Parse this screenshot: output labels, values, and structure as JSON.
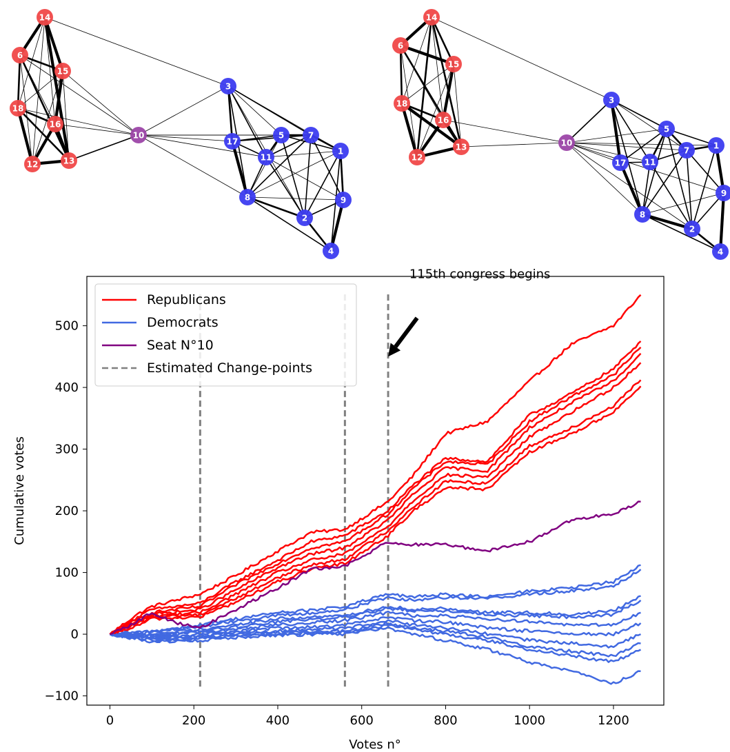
{
  "colors": {
    "republican": "#ff0000",
    "democrat": "#4169e1",
    "seat10": "#800080",
    "changepoint": "#808080",
    "node_red": "#f04848",
    "node_blue": "#3c3cf0",
    "node_purple": "#9c46a8"
  },
  "networks": [
    {
      "name": "left-network",
      "nodes": [
        {
          "id": "14",
          "party": "R"
        },
        {
          "id": "6",
          "party": "R"
        },
        {
          "id": "15",
          "party": "R"
        },
        {
          "id": "18",
          "party": "R"
        },
        {
          "id": "16",
          "party": "R"
        },
        {
          "id": "12",
          "party": "R"
        },
        {
          "id": "13",
          "party": "R"
        },
        {
          "id": "10",
          "party": "X"
        },
        {
          "id": "3",
          "party": "D"
        },
        {
          "id": "17",
          "party": "D"
        },
        {
          "id": "5",
          "party": "D"
        },
        {
          "id": "7",
          "party": "D"
        },
        {
          "id": "11",
          "party": "D"
        },
        {
          "id": "1",
          "party": "D"
        },
        {
          "id": "8",
          "party": "D"
        },
        {
          "id": "9",
          "party": "D"
        },
        {
          "id": "2",
          "party": "D"
        },
        {
          "id": "4",
          "party": "D"
        }
      ]
    },
    {
      "name": "right-network",
      "nodes": [
        {
          "id": "14",
          "party": "R"
        },
        {
          "id": "6",
          "party": "R"
        },
        {
          "id": "15",
          "party": "R"
        },
        {
          "id": "18",
          "party": "R"
        },
        {
          "id": "16",
          "party": "R"
        },
        {
          "id": "12",
          "party": "R"
        },
        {
          "id": "13",
          "party": "R"
        },
        {
          "id": "10",
          "party": "X"
        },
        {
          "id": "3",
          "party": "D"
        },
        {
          "id": "5",
          "party": "D"
        },
        {
          "id": "17",
          "party": "D"
        },
        {
          "id": "11",
          "party": "D"
        },
        {
          "id": "7",
          "party": "D"
        },
        {
          "id": "1",
          "party": "D"
        },
        {
          "id": "9",
          "party": "D"
        },
        {
          "id": "8",
          "party": "D"
        },
        {
          "id": "2",
          "party": "D"
        },
        {
          "id": "4",
          "party": "D"
        }
      ]
    }
  ],
  "chart_data": {
    "type": "line",
    "xlabel": "Votes n°",
    "ylabel": "Cumulative votes",
    "xlim": [
      -55,
      1320
    ],
    "ylim": [
      -115,
      580
    ],
    "xticks": [
      0,
      200,
      400,
      600,
      800,
      1000,
      1200
    ],
    "yticks": [
      -100,
      0,
      100,
      200,
      300,
      400,
      500
    ],
    "grid": false,
    "legend_position": "top-left",
    "legend": [
      {
        "label": "Republicans",
        "style": "solid",
        "color_key": "republican"
      },
      {
        "label": "Democrats",
        "style": "solid",
        "color_key": "democrat"
      },
      {
        "label": "Seat N°10",
        "style": "solid",
        "color_key": "seat10"
      },
      {
        "label": "Estimated Change-points",
        "style": "dashed",
        "color_key": "changepoint"
      }
    ],
    "changepoints": [
      215,
      560,
      663
    ],
    "changepoint_yrange": [
      -85,
      553
    ],
    "annotation": {
      "text": "115th congress begins",
      "x": 663,
      "y": 450,
      "text_x": 730,
      "text_y": 530
    },
    "series": [
      {
        "group": "republican",
        "x": [
          0,
          60,
          100,
          215,
          300,
          400,
          480,
          560,
          663,
          720,
          800,
          900,
          1000,
          1100,
          1200,
          1265
        ],
        "y": [
          0,
          30,
          45,
          65,
          95,
          135,
          165,
          170,
          215,
          255,
          325,
          345,
          410,
          470,
          500,
          550
        ]
      },
      {
        "group": "republican",
        "x": [
          0,
          60,
          100,
          215,
          300,
          400,
          480,
          560,
          663,
          720,
          800,
          900,
          1000,
          1100,
          1200,
          1265
        ],
        "y": [
          0,
          25,
          40,
          50,
          85,
          120,
          150,
          160,
          200,
          240,
          285,
          280,
          355,
          390,
          430,
          475
        ]
      },
      {
        "group": "republican",
        "x": [
          0,
          60,
          100,
          215,
          300,
          400,
          480,
          560,
          663,
          720,
          800,
          900,
          1000,
          1100,
          1200,
          1265
        ],
        "y": [
          0,
          22,
          35,
          45,
          80,
          115,
          140,
          150,
          195,
          235,
          280,
          275,
          345,
          385,
          420,
          465
        ]
      },
      {
        "group": "republican",
        "x": [
          0,
          60,
          100,
          215,
          300,
          400,
          480,
          560,
          663,
          720,
          800,
          900,
          1000,
          1100,
          1200,
          1265
        ],
        "y": [
          0,
          20,
          32,
          40,
          72,
          108,
          130,
          140,
          185,
          225,
          270,
          265,
          335,
          375,
          410,
          455
        ]
      },
      {
        "group": "republican",
        "x": [
          0,
          60,
          100,
          215,
          300,
          400,
          480,
          560,
          663,
          720,
          800,
          900,
          1000,
          1100,
          1200,
          1265
        ],
        "y": [
          0,
          18,
          30,
          35,
          65,
          100,
          120,
          130,
          175,
          215,
          258,
          255,
          320,
          360,
          400,
          440
        ]
      },
      {
        "group": "republican",
        "x": [
          0,
          60,
          100,
          215,
          300,
          400,
          480,
          560,
          663,
          720,
          800,
          900,
          1000,
          1100,
          1200,
          1265
        ],
        "y": [
          0,
          15,
          28,
          32,
          58,
          92,
          112,
          122,
          168,
          205,
          248,
          245,
          305,
          335,
          370,
          412
        ]
      },
      {
        "group": "republican",
        "x": [
          0,
          60,
          100,
          215,
          300,
          400,
          480,
          560,
          663,
          720,
          800,
          900,
          1000,
          1100,
          1200,
          1265
        ],
        "y": [
          0,
          12,
          25,
          28,
          52,
          85,
          105,
          115,
          160,
          198,
          238,
          235,
          295,
          325,
          360,
          402
        ]
      },
      {
        "group": "democrat",
        "x": [
          0,
          100,
          215,
          300,
          400,
          500,
          560,
          663,
          720,
          800,
          900,
          1000,
          1100,
          1200,
          1265
        ],
        "y": [
          0,
          5,
          15,
          25,
          35,
          40,
          45,
          65,
          60,
          65,
          60,
          70,
          75,
          85,
          112
        ]
      },
      {
        "group": "democrat",
        "x": [
          0,
          100,
          215,
          300,
          400,
          500,
          560,
          663,
          720,
          800,
          900,
          1000,
          1100,
          1200,
          1265
        ],
        "y": [
          0,
          3,
          12,
          22,
          30,
          35,
          40,
          60,
          55,
          60,
          58,
          65,
          70,
          78,
          105
        ]
      },
      {
        "group": "democrat",
        "x": [
          0,
          100,
          215,
          300,
          400,
          500,
          560,
          663,
          720,
          800,
          900,
          1000,
          1100,
          1200,
          1265
        ],
        "y": [
          0,
          0,
          8,
          15,
          25,
          28,
          30,
          45,
          40,
          42,
          35,
          35,
          32,
          38,
          62
        ]
      },
      {
        "group": "democrat",
        "x": [
          0,
          100,
          215,
          300,
          400,
          500,
          560,
          663,
          720,
          800,
          900,
          1000,
          1100,
          1200,
          1265
        ],
        "y": [
          0,
          -2,
          5,
          12,
          20,
          25,
          28,
          42,
          38,
          38,
          32,
          30,
          28,
          32,
          55
        ]
      },
      {
        "group": "democrat",
        "x": [
          0,
          100,
          215,
          300,
          400,
          500,
          560,
          663,
          720,
          800,
          900,
          1000,
          1100,
          1200,
          1265
        ],
        "y": [
          0,
          -3,
          3,
          8,
          15,
          20,
          22,
          35,
          30,
          30,
          25,
          20,
          15,
          15,
          35
        ]
      },
      {
        "group": "democrat",
        "x": [
          0,
          100,
          215,
          300,
          400,
          500,
          560,
          663,
          720,
          800,
          900,
          1000,
          1100,
          1200,
          1265
        ],
        "y": [
          0,
          -5,
          0,
          5,
          10,
          12,
          15,
          28,
          22,
          20,
          10,
          5,
          0,
          0,
          18
        ]
      },
      {
        "group": "democrat",
        "x": [
          0,
          100,
          215,
          300,
          400,
          500,
          560,
          663,
          720,
          800,
          900,
          1000,
          1100,
          1200,
          1265
        ],
        "y": [
          0,
          -6,
          -3,
          2,
          5,
          8,
          10,
          22,
          15,
          10,
          0,
          -10,
          -15,
          -20,
          0
        ]
      },
      {
        "group": "democrat",
        "x": [
          0,
          100,
          215,
          300,
          400,
          500,
          560,
          663,
          720,
          800,
          900,
          1000,
          1100,
          1200,
          1265
        ],
        "y": [
          0,
          -8,
          -5,
          0,
          2,
          5,
          5,
          18,
          10,
          5,
          -5,
          -20,
          -28,
          -35,
          -15
        ]
      },
      {
        "group": "democrat",
        "x": [
          0,
          100,
          215,
          300,
          400,
          500,
          560,
          663,
          720,
          800,
          900,
          1000,
          1100,
          1200,
          1265
        ],
        "y": [
          0,
          -10,
          -8,
          -2,
          0,
          2,
          3,
          15,
          8,
          0,
          -10,
          -25,
          -35,
          -45,
          -25
        ]
      },
      {
        "group": "democrat",
        "x": [
          0,
          100,
          215,
          300,
          400,
          500,
          560,
          663,
          720,
          800,
          900,
          1000,
          1100,
          1200,
          1265
        ],
        "y": [
          0,
          -12,
          -10,
          -5,
          -2,
          0,
          0,
          10,
          0,
          -10,
          -25,
          -45,
          -60,
          -80,
          -60
        ]
      },
      {
        "group": "seat10",
        "x": [
          0,
          50,
          100,
          150,
          215,
          300,
          400,
          480,
          560,
          663,
          700,
          800,
          900,
          1000,
          1100,
          1200,
          1265
        ],
        "y": [
          0,
          15,
          35,
          20,
          10,
          40,
          75,
          105,
          110,
          150,
          145,
          145,
          135,
          150,
          185,
          195,
          215
        ]
      }
    ]
  }
}
